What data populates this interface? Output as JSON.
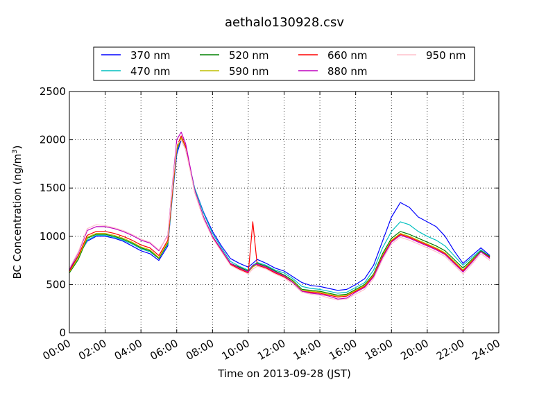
{
  "chart_data": {
    "type": "line",
    "title": "aethalo130928.csv",
    "xlabel": "Time on 2013-09-28 (JST)",
    "ylabel": "BC Concentration (ng/m",
    "ylabel_sup": "3",
    "ylabel_end": ")",
    "xlim": [
      0,
      24
    ],
    "ylim": [
      0,
      2500
    ],
    "grid": true,
    "legend_position": "top",
    "x_ticks": [
      {
        "v": 0,
        "label": "00:00"
      },
      {
        "v": 2,
        "label": "02:00"
      },
      {
        "v": 4,
        "label": "04:00"
      },
      {
        "v": 6,
        "label": "06:00"
      },
      {
        "v": 8,
        "label": "08:00"
      },
      {
        "v": 10,
        "label": "10:00"
      },
      {
        "v": 12,
        "label": "12:00"
      },
      {
        "v": 14,
        "label": "14:00"
      },
      {
        "v": 16,
        "label": "16:00"
      },
      {
        "v": 18,
        "label": "18:00"
      },
      {
        "v": 20,
        "label": "20:00"
      },
      {
        "v": 22,
        "label": "22:00"
      },
      {
        "v": 24,
        "label": "24:00"
      }
    ],
    "y_ticks": [
      {
        "v": 0,
        "label": "0"
      },
      {
        "v": 500,
        "label": "500"
      },
      {
        "v": 1000,
        "label": "1000"
      },
      {
        "v": 1500,
        "label": "1500"
      },
      {
        "v": 2000,
        "label": "2000"
      },
      {
        "v": 2500,
        "label": "2500"
      }
    ],
    "x": [
      0.0,
      0.5,
      1.0,
      1.5,
      2.0,
      2.5,
      3.0,
      3.5,
      4.0,
      4.5,
      5.0,
      5.5,
      5.75,
      6.0,
      6.25,
      6.5,
      7.0,
      7.5,
      8.0,
      8.5,
      9.0,
      9.5,
      10.0,
      10.25,
      10.5,
      11.0,
      11.5,
      12.0,
      12.5,
      13.0,
      13.5,
      14.0,
      14.5,
      15.0,
      15.5,
      16.0,
      16.5,
      17.0,
      17.5,
      18.0,
      18.5,
      19.0,
      19.5,
      20.0,
      20.5,
      21.0,
      21.5,
      22.0,
      22.5,
      23.0,
      23.5
    ],
    "series": [
      {
        "name": "370 nm",
        "color": "#0000ff",
        "values": [
          650,
          800,
          950,
          1000,
          1000,
          980,
          950,
          900,
          850,
          820,
          750,
          900,
          1400,
          1850,
          2000,
          1900,
          1500,
          1250,
          1050,
          900,
          770,
          720,
          680,
          720,
          760,
          720,
          670,
          640,
          580,
          520,
          490,
          480,
          460,
          440,
          450,
          500,
          560,
          700,
          950,
          1200,
          1350,
          1300,
          1200,
          1150,
          1100,
          1000,
          850,
          720,
          800,
          880,
          800
        ]
      },
      {
        "name": "470 nm",
        "color": "#00bfbf",
        "values": [
          640,
          790,
          960,
          1010,
          1010,
          990,
          960,
          920,
          870,
          840,
          770,
          920,
          1420,
          1880,
          2030,
          1920,
          1500,
          1240,
          1030,
          880,
          740,
          690,
          650,
          700,
          730,
          700,
          650,
          620,
          560,
          480,
          460,
          450,
          430,
          410,
          420,
          470,
          520,
          650,
          880,
          1050,
          1150,
          1120,
          1050,
          1000,
          960,
          900,
          800,
          700,
          780,
          860,
          790
        ]
      },
      {
        "name": "520 nm",
        "color": "#008000",
        "values": [
          620,
          760,
          980,
          1020,
          1020,
          1000,
          970,
          930,
          880,
          850,
          770,
          930,
          1430,
          1900,
          2010,
          1900,
          1480,
          1200,
          1000,
          860,
          720,
          680,
          640,
          690,
          720,
          690,
          640,
          600,
          540,
          450,
          440,
          430,
          410,
          390,
          400,
          450,
          500,
          610,
          820,
          980,
          1050,
          1020,
          980,
          940,
          900,
          850,
          760,
          670,
          760,
          850,
          790
        ]
      },
      {
        "name": "590 nm",
        "color": "#bfbf00",
        "values": [
          630,
          780,
          990,
          1030,
          1030,
          1010,
          980,
          940,
          890,
          860,
          780,
          940,
          1440,
          1910,
          2020,
          1910,
          1470,
          1190,
          990,
          850,
          710,
          670,
          630,
          680,
          710,
          680,
          630,
          590,
          530,
          440,
          430,
          420,
          400,
          380,
          390,
          440,
          490,
          600,
          800,
          960,
          1030,
          1000,
          960,
          920,
          880,
          830,
          740,
          650,
          750,
          840,
          780
        ]
      },
      {
        "name": "660 nm",
        "color": "#ff0000",
        "values": [
          640,
          800,
          1010,
          1050,
          1050,
          1030,
          1000,
          960,
          910,
          880,
          800,
          960,
          1460,
          1930,
          2040,
          1930,
          1460,
          1180,
          990,
          850,
          710,
          660,
          620,
          1150,
          700,
          670,
          620,
          580,
          520,
          430,
          420,
          410,
          390,
          370,
          380,
          430,
          480,
          590,
          790,
          950,
          1020,
          990,
          950,
          910,
          870,
          820,
          730,
          640,
          740,
          840,
          780
        ]
      },
      {
        "name": "880 nm",
        "color": "#bf00bf",
        "values": [
          660,
          830,
          1060,
          1100,
          1100,
          1080,
          1050,
          1010,
          960,
          930,
          850,
          1010,
          1520,
          2000,
          2080,
          1960,
          1480,
          1200,
          1000,
          860,
          720,
          670,
          630,
          700,
          710,
          680,
          630,
          590,
          520,
          430,
          410,
          400,
          380,
          350,
          360,
          420,
          470,
          580,
          780,
          940,
          1010,
          980,
          940,
          900,
          860,
          810,
          720,
          630,
          730,
          840,
          770
        ]
      },
      {
        "name": "950 nm",
        "color": "#ffc0cb",
        "values": [
          670,
          840,
          1080,
          1120,
          1110,
          1090,
          1060,
          1020,
          970,
          940,
          860,
          1000,
          1500,
          1950,
          2000,
          1900,
          1460,
          1180,
          980,
          840,
          700,
          650,
          610,
          660,
          690,
          660,
          610,
          570,
          500,
          420,
          400,
          390,
          360,
          340,
          350,
          400,
          450,
          560,
          760,
          920,
          990,
          960,
          920,
          880,
          840,
          790,
          700,
          610,
          710,
          820,
          750
        ]
      }
    ]
  }
}
